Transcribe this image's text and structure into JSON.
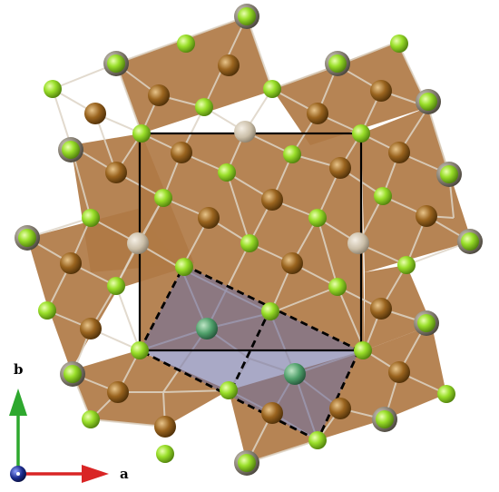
{
  "axes": {
    "a_label": "a",
    "b_label": "b",
    "a_color": "#d92525",
    "b_color": "#2ea82e",
    "c_color": "#1a2a8a"
  },
  "colors": {
    "polyhedron_fill": "#b07a45",
    "bond": "#d8cfc4",
    "green_atom": "#9adf2a",
    "brown_atom": "#8a5a1a",
    "gray_atom": "#8c8578",
    "unit_cell": "#000000",
    "supercell_fill": "#6f6fa0"
  }
}
